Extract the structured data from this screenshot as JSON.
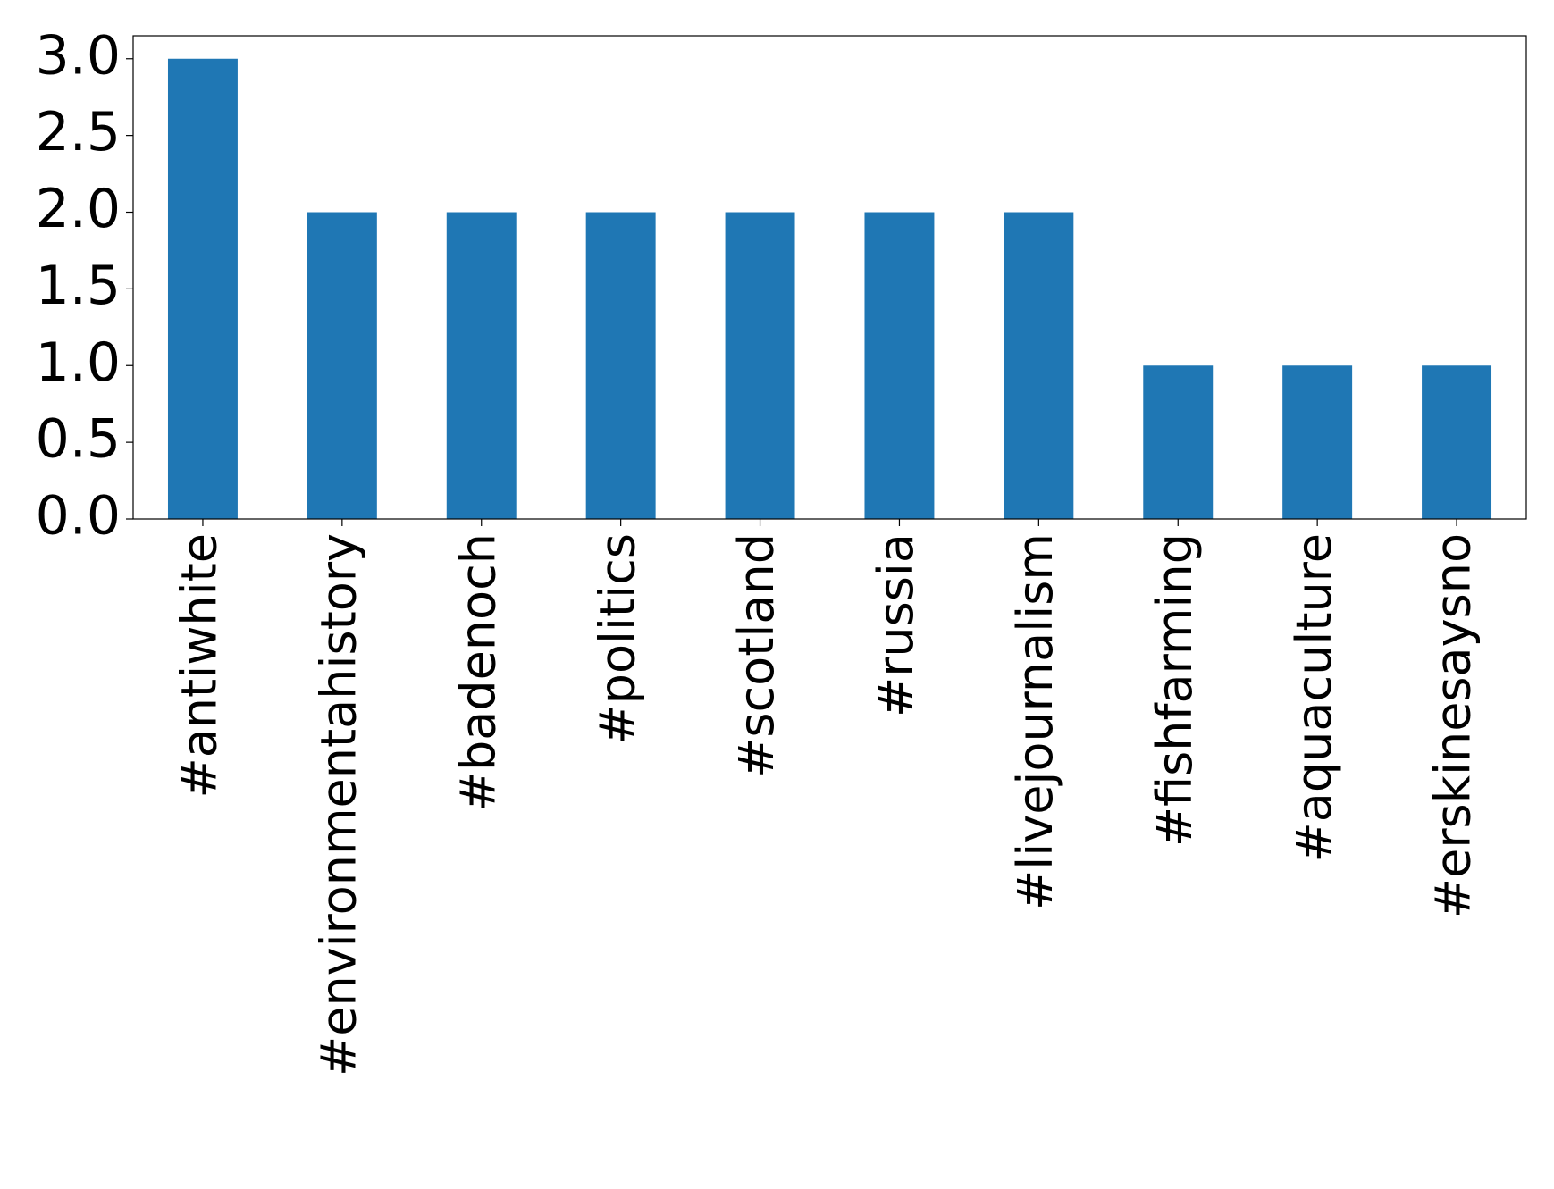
{
  "chart_data": {
    "type": "bar",
    "categories": [
      "#antiwhite",
      "#environmentahistory",
      "#badenoch",
      "#politics",
      "#scotland",
      "#russia",
      "#livejournalism",
      "#fishfarming",
      "#aquaculture",
      "#erskinesaysno"
    ],
    "values": [
      3,
      2,
      2,
      2,
      2,
      2,
      2,
      1,
      1,
      1
    ],
    "color": "#1f77b4",
    "ylim": [
      0,
      3.15
    ],
    "yticks": [
      {
        "value": 0,
        "label": "0.0"
      },
      0.5,
      {
        "value": 1,
        "label": "1.0"
      },
      1.5,
      {
        "value": 2,
        "label": "2.0"
      },
      2.5,
      {
        "value": 3,
        "label": "3.0"
      }
    ],
    "grid": false
  }
}
